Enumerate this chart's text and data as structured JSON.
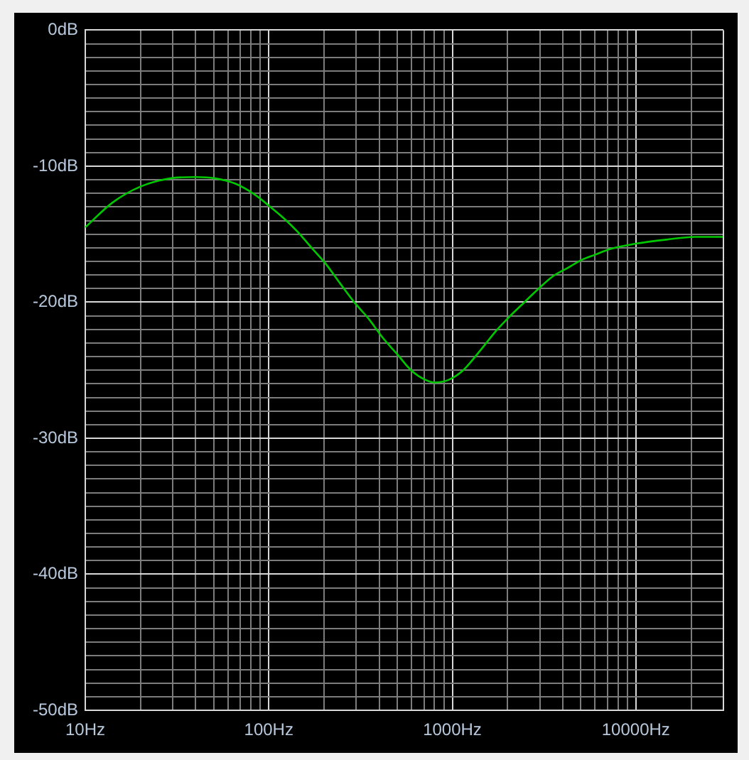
{
  "chart_data": {
    "type": "line",
    "log": "x",
    "grid": true,
    "marker": "none",
    "color": "#00c800",
    "xlim": [
      10,
      30000
    ],
    "ylim": [
      -50,
      0
    ],
    "xticks": [
      {
        "value": 10,
        "label": "10Hz"
      },
      {
        "value": 20,
        "label": null
      },
      {
        "value": 30,
        "label": null
      },
      {
        "value": 40,
        "label": null
      },
      {
        "value": 50,
        "label": null
      },
      {
        "value": 60,
        "label": null
      },
      {
        "value": 70,
        "label": null
      },
      {
        "value": 80,
        "label": null
      },
      {
        "value": 90,
        "label": null
      },
      {
        "value": 100,
        "label": "100Hz"
      },
      {
        "value": 200,
        "label": null
      },
      {
        "value": 300,
        "label": null
      },
      {
        "value": 400,
        "label": null
      },
      {
        "value": 500,
        "label": null
      },
      {
        "value": 600,
        "label": null
      },
      {
        "value": 700,
        "label": null
      },
      {
        "value": 800,
        "label": null
      },
      {
        "value": 900,
        "label": null
      },
      {
        "value": 1000,
        "label": "1000Hz"
      },
      {
        "value": 2000,
        "label": null
      },
      {
        "value": 3000,
        "label": null
      },
      {
        "value": 4000,
        "label": null
      },
      {
        "value": 5000,
        "label": null
      },
      {
        "value": 6000,
        "label": null
      },
      {
        "value": 7000,
        "label": null
      },
      {
        "value": 8000,
        "label": null
      },
      {
        "value": 9000,
        "label": null
      },
      {
        "value": 10000,
        "label": "10000Hz"
      },
      {
        "value": 20000,
        "label": null
      }
    ],
    "yticks": [
      {
        "value": 0,
        "label": "0dB"
      },
      {
        "value": -1,
        "label": null
      },
      {
        "value": -2,
        "label": null
      },
      {
        "value": -3,
        "label": null
      },
      {
        "value": -4,
        "label": null
      },
      {
        "value": -5,
        "label": null
      },
      {
        "value": -6,
        "label": null
      },
      {
        "value": -7,
        "label": null
      },
      {
        "value": -8,
        "label": null
      },
      {
        "value": -9,
        "label": null
      },
      {
        "value": -10,
        "label": "-10dB"
      },
      {
        "value": -11,
        "label": null
      },
      {
        "value": -12,
        "label": null
      },
      {
        "value": -13,
        "label": null
      },
      {
        "value": -14,
        "label": null
      },
      {
        "value": -15,
        "label": null
      },
      {
        "value": -16,
        "label": null
      },
      {
        "value": -17,
        "label": null
      },
      {
        "value": -18,
        "label": null
      },
      {
        "value": -19,
        "label": null
      },
      {
        "value": -20,
        "label": "-20dB"
      },
      {
        "value": -21,
        "label": null
      },
      {
        "value": -22,
        "label": null
      },
      {
        "value": -23,
        "label": null
      },
      {
        "value": -24,
        "label": null
      },
      {
        "value": -25,
        "label": null
      },
      {
        "value": -26,
        "label": null
      },
      {
        "value": -27,
        "label": null
      },
      {
        "value": -28,
        "label": null
      },
      {
        "value": -29,
        "label": null
      },
      {
        "value": -30,
        "label": "-30dB"
      },
      {
        "value": -31,
        "label": null
      },
      {
        "value": -32,
        "label": null
      },
      {
        "value": -33,
        "label": null
      },
      {
        "value": -34,
        "label": null
      },
      {
        "value": -35,
        "label": null
      },
      {
        "value": -36,
        "label": null
      },
      {
        "value": -37,
        "label": null
      },
      {
        "value": -38,
        "label": null
      },
      {
        "value": -39,
        "label": null
      },
      {
        "value": -40,
        "label": "-40dB"
      },
      {
        "value": -41,
        "label": null
      },
      {
        "value": -42,
        "label": null
      },
      {
        "value": -43,
        "label": null
      },
      {
        "value": -44,
        "label": null
      },
      {
        "value": -45,
        "label": null
      },
      {
        "value": -46,
        "label": null
      },
      {
        "value": -47,
        "label": null
      },
      {
        "value": -48,
        "label": null
      },
      {
        "value": -49,
        "label": null
      },
      {
        "value": -50,
        "label": "-50dB"
      }
    ],
    "x": [
      10,
      14,
      20,
      29,
      40,
      51,
      66,
      84,
      100,
      120,
      143,
      171,
      205,
      244,
      292,
      349,
      417,
      499,
      596,
      711,
      802,
      957,
      1146,
      1410,
      1734,
      2070,
      2472,
      2956,
      3530,
      4224,
      5050,
      6030,
      7210,
      10000,
      14700,
      21000,
      30000
    ],
    "values": [
      -14.5,
      -12.7,
      -11.5,
      -10.9,
      -10.8,
      -10.9,
      -11.3,
      -12.1,
      -12.9,
      -13.8,
      -14.8,
      -16.0,
      -17.2,
      -18.6,
      -20.0,
      -21.2,
      -22.6,
      -23.8,
      -25.0,
      -25.7,
      -25.9,
      -25.7,
      -25.0,
      -23.6,
      -22.1,
      -21.0,
      -20.0,
      -19.0,
      -18.1,
      -17.5,
      -16.9,
      -16.5,
      -16.1,
      -15.7,
      -15.4,
      -15.2,
      -15.2
    ]
  }
}
